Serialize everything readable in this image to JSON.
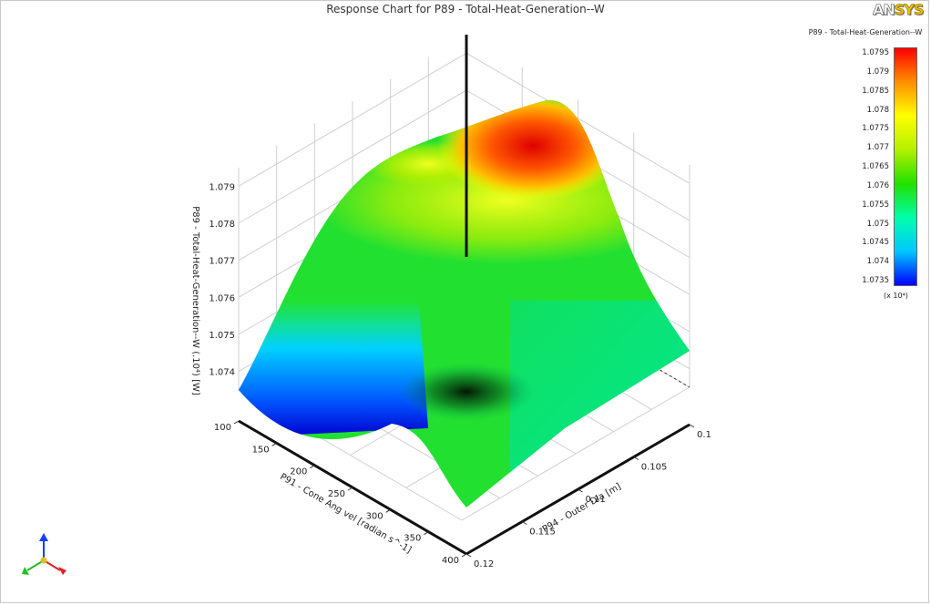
{
  "chart_data": {
    "type": "surface3d",
    "title": "Response Chart for P89 - Total-Heat-Generation--W",
    "x_axis": {
      "label": "P91 - Cone Ang vel  [radian s^-1]",
      "range": [
        100,
        400
      ],
      "ticks": [
        "100",
        "150",
        "200",
        "250",
        "300",
        "350",
        "400"
      ]
    },
    "y_axis": {
      "label": "P94 - Outer Dia  [m]",
      "range": [
        0.1,
        0.12
      ],
      "ticks": [
        "0.1",
        "0.105",
        "0.11",
        "0.115",
        "0.12"
      ]
    },
    "z_axis": {
      "label": "P89 - Total-Heat-Generation--W  (.10⁴)  [W]",
      "range": [
        1.0735,
        1.0795
      ],
      "ticks": [
        "1.074",
        "1.075",
        "1.076",
        "1.077",
        "1.078",
        "1.079"
      ]
    },
    "surface_samples": [
      {
        "cone_ang_vel": 100,
        "outer_dia": 0.12,
        "heat": 1.0735
      },
      {
        "cone_ang_vel": 100,
        "outer_dia": 0.1,
        "heat": 1.0785
      },
      {
        "cone_ang_vel": 250,
        "outer_dia": 0.1,
        "heat": 1.0795
      },
      {
        "cone_ang_vel": 400,
        "outer_dia": 0.1,
        "heat": 1.0752
      },
      {
        "cone_ang_vel": 400,
        "outer_dia": 0.12,
        "heat": 1.0757
      },
      {
        "cone_ang_vel": 250,
        "outer_dia": 0.12,
        "heat": 1.0742
      }
    ],
    "legend": {
      "title": "P89 - Total-Heat-Generation--W",
      "ticks": [
        "1.0795",
        "1.079",
        "1.0785",
        "1.078",
        "1.0775",
        "1.077",
        "1.0765",
        "1.076",
        "1.0755",
        "1.075",
        "1.0745",
        "1.074",
        "1.0735"
      ],
      "exponent_label": "(x 10⁴)",
      "colormap": [
        "#0000ff",
        "#00c8ff",
        "#00ffaa",
        "#22e000",
        "#b4f000",
        "#ffff00",
        "#ff9000",
        "#ff0000"
      ]
    }
  },
  "branding": {
    "logo_text": "ANSYS"
  }
}
